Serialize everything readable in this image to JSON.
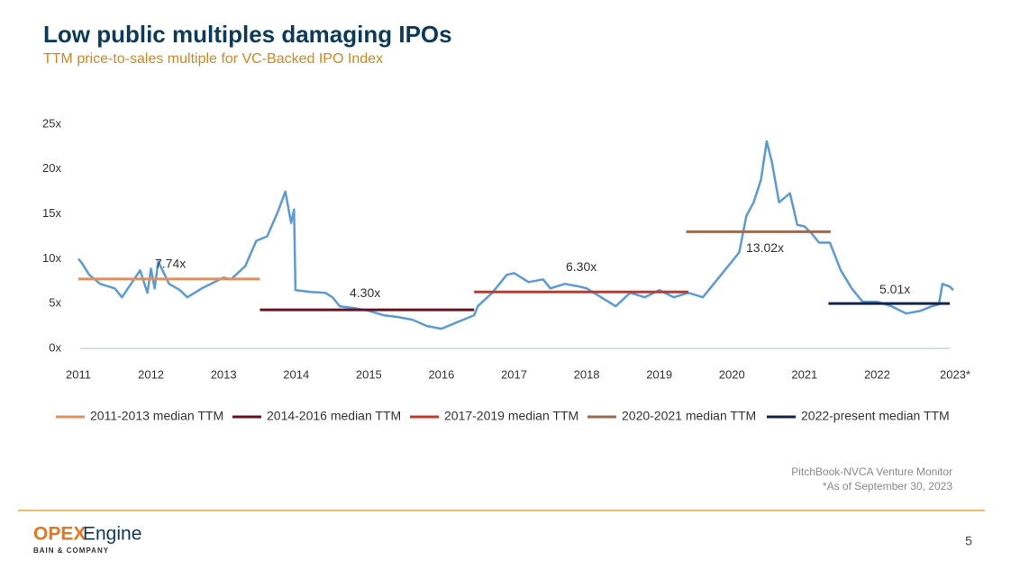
{
  "slide": {
    "title": "Low public multiples damaging IPOs",
    "subtitle": "TTM price-to-sales multiple for VC-Backed IPO Index",
    "source": "PitchBook-NVCA Venture Monitor",
    "note": "*As of September 30, 2023",
    "logo": {
      "part1": "OPEX",
      "part2": "Engine",
      "sub": "BAIN & COMPANY"
    },
    "page_number": "5"
  },
  "chart_data": {
    "type": "line",
    "color": "#5b9bd5",
    "grid": false,
    "x": [
      2011.0,
      2011.05,
      2011.15,
      2011.3,
      2011.5,
      2011.6,
      2011.75,
      2011.85,
      2011.95,
      2012.0,
      2012.05,
      2012.1,
      2012.25,
      2012.4,
      2012.5,
      2012.7,
      2012.9,
      2013.0,
      2013.1,
      2013.3,
      2013.45,
      2013.6,
      2013.75,
      2013.85,
      2013.93,
      2013.97,
      2013.99,
      2014.2,
      2014.4,
      2014.5,
      2014.6,
      2014.8,
      2015.0,
      2015.2,
      2015.4,
      2015.6,
      2015.8,
      2016.0,
      2016.15,
      2016.3,
      2016.45,
      2016.5,
      2016.7,
      2016.9,
      2017.0,
      2017.2,
      2017.4,
      2017.5,
      2017.7,
      2017.9,
      2018.0,
      2018.2,
      2018.4,
      2018.6,
      2018.8,
      2019.0,
      2019.2,
      2019.4,
      2019.6,
      2019.75,
      2019.9,
      2020.0,
      2020.1,
      2020.2,
      2020.3,
      2020.4,
      2020.48,
      2020.55,
      2020.65,
      2020.8,
      2020.9,
      2021.0,
      2021.1,
      2021.2,
      2021.35,
      2021.5,
      2021.65,
      2021.8,
      2022.0,
      2022.2,
      2022.4,
      2022.6,
      2022.75,
      2022.85,
      2022.9,
      2023.0,
      2023.05
    ],
    "values": [
      10.0,
      9.5,
      8.2,
      7.2,
      6.7,
      5.7,
      7.5,
      8.7,
      6.2,
      8.9,
      6.7,
      9.7,
      7.2,
      6.5,
      5.7,
      6.7,
      7.5,
      7.9,
      7.7,
      9.2,
      12.0,
      12.5,
      15.3,
      17.5,
      14.0,
      15.5,
      6.5,
      6.3,
      6.2,
      5.7,
      4.7,
      4.5,
      4.2,
      3.7,
      3.5,
      3.2,
      2.5,
      2.2,
      2.7,
      3.2,
      3.7,
      4.7,
      6.2,
      8.2,
      8.4,
      7.4,
      7.7,
      6.7,
      7.2,
      6.9,
      6.7,
      5.7,
      4.7,
      6.2,
      5.7,
      6.5,
      5.7,
      6.2,
      5.7,
      7.2,
      8.7,
      9.7,
      10.7,
      14.8,
      16.3,
      18.8,
      23.1,
      20.8,
      16.3,
      17.3,
      13.8,
      13.6,
      12.8,
      11.8,
      11.8,
      8.7,
      6.7,
      5.2,
      5.2,
      4.7,
      3.9,
      4.2,
      4.7,
      4.9,
      7.2,
      6.9,
      6.5
    ],
    "xlim": [
      2011,
      2023
    ],
    "xticks": [
      2011,
      2012,
      2013,
      2014,
      2015,
      2016,
      2017,
      2018,
      2019,
      2020,
      2021,
      2022,
      {
        "value": 2023,
        "label": "2023*"
      }
    ],
    "ylim": [
      0,
      25
    ],
    "yticks": [
      {
        "value": 0,
        "label": "0x"
      },
      {
        "value": 5,
        "label": "5x"
      },
      {
        "value": 10,
        "label": "10x"
      },
      {
        "value": 15,
        "label": "15x"
      },
      {
        "value": 20,
        "label": "20x"
      },
      {
        "value": 25,
        "label": "25x"
      }
    ],
    "medians": [
      {
        "name": "2011-2013 median TTM",
        "color": "#e0905f",
        "value": 7.74,
        "value_label": "7.74x",
        "x_range": [
          2011.0,
          2013.5
        ]
      },
      {
        "name": "2014-2016 median TTM",
        "color": "#6b1020",
        "value": 4.3,
        "value_label": "4.30x",
        "x_range": [
          2013.5,
          2016.45
        ]
      },
      {
        "name": "2017-2019 median TTM",
        "color": "#c0392b",
        "value": 6.3,
        "value_label": "6.30x",
        "x_range": [
          2016.45,
          2019.4
        ]
      },
      {
        "name": "2020-2021 median TTM",
        "color": "#9c6a4f",
        "value": 13.02,
        "value_label": "13.02x",
        "x_range": [
          2019.37,
          2021.36
        ]
      },
      {
        "name": "2022-present median TTM",
        "color": "#14234b",
        "value": 5.01,
        "value_label": "5.01x",
        "x_range": [
          2021.33,
          2023.0
        ]
      }
    ]
  }
}
